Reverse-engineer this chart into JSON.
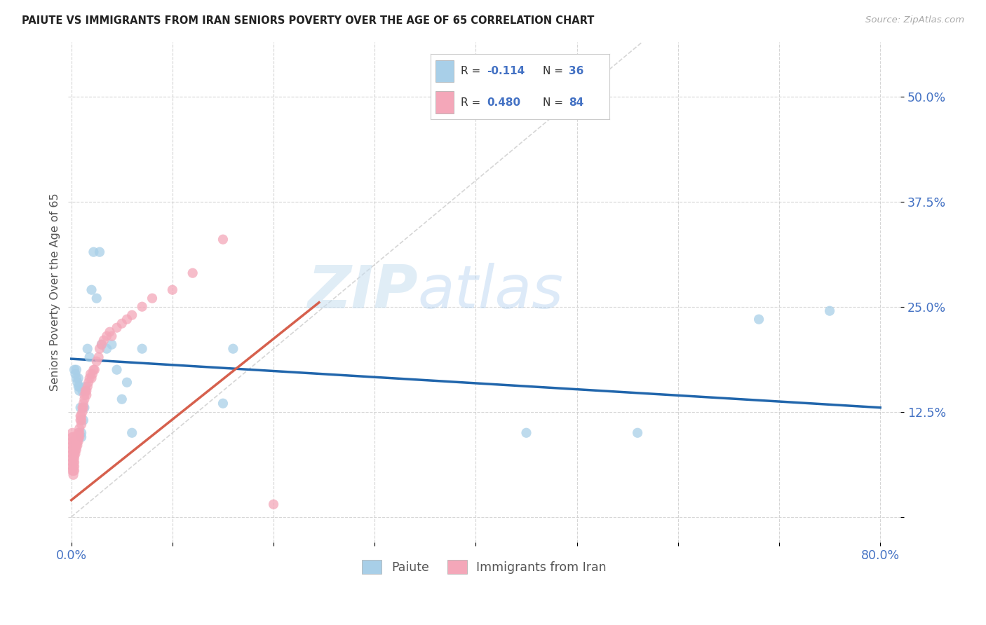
{
  "title": "PAIUTE VS IMMIGRANTS FROM IRAN SENIORS POVERTY OVER THE AGE OF 65 CORRELATION CHART",
  "source": "Source: ZipAtlas.com",
  "ylabel": "Seniors Poverty Over the Age of 65",
  "xlim": [
    -0.003,
    0.82
  ],
  "ylim": [
    -0.03,
    0.565
  ],
  "yticks": [
    0.0,
    0.125,
    0.25,
    0.375,
    0.5
  ],
  "ytick_labels": [
    "",
    "12.5%",
    "25.0%",
    "37.5%",
    "50.0%"
  ],
  "xtick_positions": [
    0.0,
    0.1,
    0.2,
    0.3,
    0.4,
    0.5,
    0.6,
    0.7,
    0.8
  ],
  "xtick_labels": [
    "0.0%",
    "",
    "",
    "",
    "",
    "",
    "",
    "",
    "80.0%"
  ],
  "legend_r1": "-0.114",
  "legend_n1": "36",
  "legend_r2": "0.480",
  "legend_n2": "84",
  "legend_label1": "Paiute",
  "legend_label2": "Immigrants from Iran",
  "color_blue": "#a8cfe8",
  "color_pink": "#f4a7b9",
  "color_blue_line": "#2166ac",
  "color_pink_line": "#d6604d",
  "color_diag": "#cccccc",
  "watermark_zip": "ZIP",
  "watermark_atlas": "atlas",
  "paiute_x": [
    0.003,
    0.004,
    0.005,
    0.005,
    0.006,
    0.007,
    0.007,
    0.008,
    0.008,
    0.009,
    0.01,
    0.01,
    0.011,
    0.012,
    0.013,
    0.014,
    0.016,
    0.018,
    0.02,
    0.022,
    0.025,
    0.028,
    0.03,
    0.035,
    0.04,
    0.045,
    0.05,
    0.055,
    0.06,
    0.07,
    0.15,
    0.16,
    0.45,
    0.56,
    0.68,
    0.75
  ],
  "paiute_y": [
    0.175,
    0.17,
    0.165,
    0.175,
    0.16,
    0.155,
    0.165,
    0.15,
    0.155,
    0.13,
    0.095,
    0.1,
    0.15,
    0.115,
    0.13,
    0.155,
    0.2,
    0.19,
    0.27,
    0.315,
    0.26,
    0.315,
    0.205,
    0.2,
    0.205,
    0.175,
    0.14,
    0.16,
    0.1,
    0.2,
    0.135,
    0.2,
    0.1,
    0.1,
    0.235,
    0.245
  ],
  "iran_x": [
    0.001,
    0.001,
    0.001,
    0.001,
    0.001,
    0.001,
    0.001,
    0.001,
    0.001,
    0.001,
    0.002,
    0.002,
    0.002,
    0.002,
    0.002,
    0.002,
    0.002,
    0.002,
    0.002,
    0.002,
    0.003,
    0.003,
    0.003,
    0.003,
    0.003,
    0.003,
    0.003,
    0.004,
    0.004,
    0.004,
    0.004,
    0.005,
    0.005,
    0.005,
    0.005,
    0.006,
    0.006,
    0.006,
    0.007,
    0.007,
    0.007,
    0.008,
    0.008,
    0.008,
    0.009,
    0.009,
    0.01,
    0.01,
    0.01,
    0.011,
    0.011,
    0.012,
    0.012,
    0.013,
    0.013,
    0.014,
    0.015,
    0.015,
    0.016,
    0.017,
    0.018,
    0.019,
    0.02,
    0.021,
    0.022,
    0.023,
    0.025,
    0.027,
    0.028,
    0.03,
    0.032,
    0.035,
    0.038,
    0.04,
    0.045,
    0.05,
    0.055,
    0.06,
    0.07,
    0.08,
    0.1,
    0.12,
    0.15,
    0.2
  ],
  "iran_y": [
    0.055,
    0.06,
    0.065,
    0.07,
    0.075,
    0.08,
    0.085,
    0.09,
    0.095,
    0.1,
    0.05,
    0.055,
    0.06,
    0.065,
    0.07,
    0.075,
    0.08,
    0.085,
    0.09,
    0.095,
    0.055,
    0.06,
    0.065,
    0.07,
    0.075,
    0.08,
    0.085,
    0.075,
    0.08,
    0.085,
    0.09,
    0.08,
    0.085,
    0.09,
    0.095,
    0.085,
    0.09,
    0.095,
    0.09,
    0.095,
    0.1,
    0.095,
    0.1,
    0.105,
    0.115,
    0.12,
    0.11,
    0.115,
    0.12,
    0.125,
    0.13,
    0.13,
    0.135,
    0.14,
    0.145,
    0.15,
    0.145,
    0.15,
    0.155,
    0.16,
    0.165,
    0.17,
    0.165,
    0.17,
    0.175,
    0.175,
    0.185,
    0.19,
    0.2,
    0.205,
    0.21,
    0.215,
    0.22,
    0.215,
    0.225,
    0.23,
    0.235,
    0.24,
    0.25,
    0.26,
    0.27,
    0.29,
    0.33,
    0.015
  ],
  "blue_trend_x": [
    0.0,
    0.8
  ],
  "blue_trend_y": [
    0.188,
    0.13
  ],
  "pink_trend_x": [
    0.0,
    0.245
  ],
  "pink_trend_y": [
    0.02,
    0.255
  ]
}
